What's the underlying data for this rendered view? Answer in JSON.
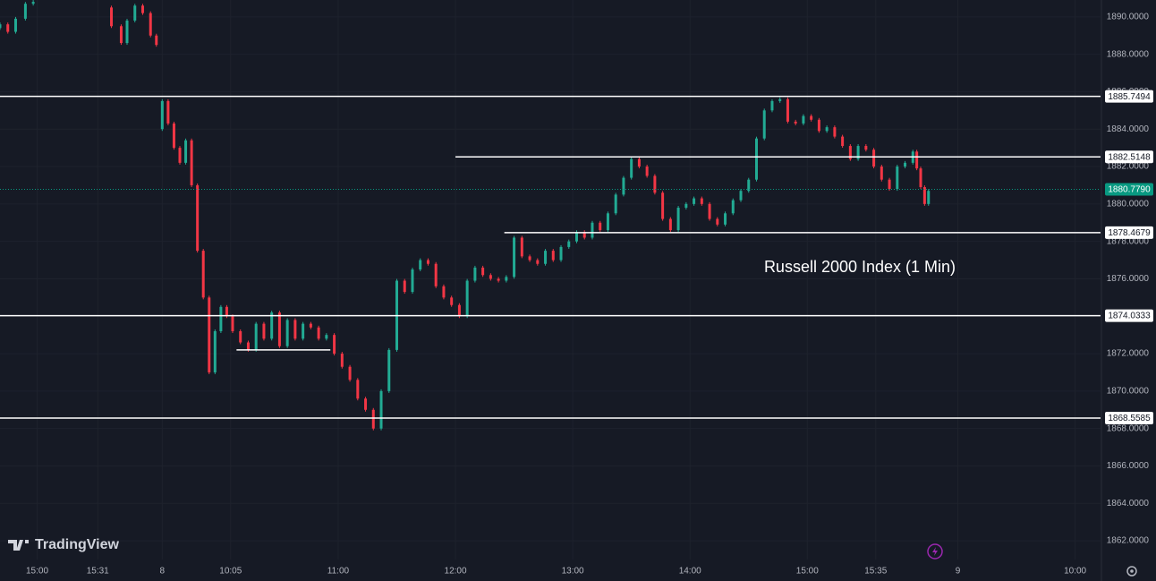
{
  "chart_data": {
    "type": "candlestick",
    "annotation": "Russell 2000 Index (1 Min)",
    "brand": "TradingView",
    "up_color": "#22ab94",
    "down_color": "#f23645",
    "xlim": [
      -83,
      480
    ],
    "ylim": [
      1861.0,
      1890.9
    ],
    "xticks": [
      {
        "value": -64,
        "label": "15:00"
      },
      {
        "value": -33,
        "label": "15:31"
      },
      {
        "value": 0,
        "label": "8"
      },
      {
        "value": 35,
        "label": "10:05"
      },
      {
        "value": 90,
        "label": "11:00"
      },
      {
        "value": 150,
        "label": "12:00"
      },
      {
        "value": 210,
        "label": "13:00"
      },
      {
        "value": 270,
        "label": "14:00"
      },
      {
        "value": 330,
        "label": "15:00"
      },
      {
        "value": 365,
        "label": "15:35"
      },
      {
        "value": 407,
        "label": "9"
      },
      {
        "value": 467,
        "label": "10:00"
      }
    ],
    "yticks": [
      {
        "value": 1862,
        "label": "1862.0000"
      },
      {
        "value": 1864,
        "label": "1864.0000"
      },
      {
        "value": 1866,
        "label": "1866.0000"
      },
      {
        "value": 1868,
        "label": "1868.0000"
      },
      {
        "value": 1870,
        "label": "1870.0000"
      },
      {
        "value": 1872,
        "label": "1872.0000"
      },
      {
        "value": 1874,
        "label": "1874.0000"
      },
      {
        "value": 1876,
        "label": "1876.0000"
      },
      {
        "value": 1878,
        "label": "1878.0000"
      },
      {
        "value": 1880,
        "label": "1880.0000"
      },
      {
        "value": 1882,
        "label": "1882.0000"
      },
      {
        "value": 1884,
        "label": "1884.0000"
      },
      {
        "value": 1886,
        "label": "1886.0000"
      },
      {
        "value": 1888,
        "label": "1888.0000"
      },
      {
        "value": 1890,
        "label": "1890.0000"
      }
    ],
    "levels": [
      {
        "price": 1885.7494,
        "from": -83
      },
      {
        "price": 1882.5148,
        "from": 150
      },
      {
        "price": 1878.4679,
        "from": 175
      },
      {
        "price": 1874.0333,
        "from": -83
      },
      {
        "price": 1868.5585,
        "from": -83
      }
    ],
    "minor_level": {
      "price": 1872.2,
      "from": 38,
      "to": 86
    },
    "last_price": {
      "value": 1880.779,
      "label": "1880.7790",
      "color": "#089981"
    },
    "candles": [
      {
        "x": -83,
        "open": 1889.4,
        "close": 1889.6
      },
      {
        "x": -79,
        "open": 1889.6,
        "close": 1889.2
      },
      {
        "x": -75,
        "open": 1889.2,
        "close": 1889.9
      },
      {
        "x": -70,
        "open": 1889.9,
        "close": 1890.7
      },
      {
        "x": -66,
        "open": 1890.7,
        "close": 1890.8
      },
      {
        "x": -26,
        "open": 1890.5,
        "close": 1889.5
      },
      {
        "x": -21,
        "open": 1889.5,
        "close": 1888.6
      },
      {
        "x": -18,
        "open": 1888.6,
        "close": 1889.8
      },
      {
        "x": -14,
        "open": 1889.8,
        "close": 1890.6
      },
      {
        "x": -10,
        "open": 1890.6,
        "close": 1890.2
      },
      {
        "x": -6,
        "open": 1890.2,
        "close": 1889.0
      },
      {
        "x": -3,
        "open": 1889.0,
        "close": 1888.5
      },
      {
        "x": 0,
        "open": 1884.0,
        "close": 1885.5
      },
      {
        "x": 3,
        "open": 1885.5,
        "close": 1884.3
      },
      {
        "x": 6,
        "open": 1884.3,
        "close": 1883.0
      },
      {
        "x": 9,
        "open": 1883.0,
        "close": 1882.2
      },
      {
        "x": 12,
        "open": 1882.2,
        "close": 1883.4
      },
      {
        "x": 15,
        "open": 1883.4,
        "close": 1881.0
      },
      {
        "x": 18,
        "open": 1881.0,
        "close": 1877.5
      },
      {
        "x": 21,
        "open": 1877.5,
        "close": 1875.0
      },
      {
        "x": 24,
        "open": 1875.0,
        "close": 1871.0
      },
      {
        "x": 27,
        "open": 1871.0,
        "close": 1873.2
      },
      {
        "x": 30,
        "open": 1873.2,
        "close": 1874.5
      },
      {
        "x": 33,
        "open": 1874.5,
        "close": 1874.0
      },
      {
        "x": 36,
        "open": 1874.0,
        "close": 1873.2
      },
      {
        "x": 40,
        "open": 1873.2,
        "close": 1872.6
      },
      {
        "x": 44,
        "open": 1872.6,
        "close": 1872.2
      },
      {
        "x": 48,
        "open": 1872.2,
        "close": 1873.6
      },
      {
        "x": 52,
        "open": 1873.6,
        "close": 1872.8
      },
      {
        "x": 56,
        "open": 1872.8,
        "close": 1874.2
      },
      {
        "x": 60,
        "open": 1874.2,
        "close": 1872.4
      },
      {
        "x": 64,
        "open": 1872.4,
        "close": 1873.8
      },
      {
        "x": 68,
        "open": 1873.8,
        "close": 1872.8
      },
      {
        "x": 72,
        "open": 1872.8,
        "close": 1873.6
      },
      {
        "x": 76,
        "open": 1873.6,
        "close": 1873.4
      },
      {
        "x": 80,
        "open": 1873.4,
        "close": 1872.8
      },
      {
        "x": 84,
        "open": 1872.8,
        "close": 1873.0
      },
      {
        "x": 88,
        "open": 1873.0,
        "close": 1872.0
      },
      {
        "x": 92,
        "open": 1872.0,
        "close": 1871.3
      },
      {
        "x": 96,
        "open": 1871.3,
        "close": 1870.6
      },
      {
        "x": 100,
        "open": 1870.6,
        "close": 1869.6
      },
      {
        "x": 104,
        "open": 1869.6,
        "close": 1869.0
      },
      {
        "x": 108,
        "open": 1869.0,
        "close": 1868.0
      },
      {
        "x": 112,
        "open": 1868.0,
        "close": 1870.0
      },
      {
        "x": 116,
        "open": 1870.0,
        "close": 1872.2
      },
      {
        "x": 120,
        "open": 1872.2,
        "close": 1875.9
      },
      {
        "x": 124,
        "open": 1875.9,
        "close": 1875.3
      },
      {
        "x": 128,
        "open": 1875.3,
        "close": 1876.5
      },
      {
        "x": 132,
        "open": 1876.5,
        "close": 1877.0
      },
      {
        "x": 136,
        "open": 1877.0,
        "close": 1876.8
      },
      {
        "x": 140,
        "open": 1876.8,
        "close": 1875.6
      },
      {
        "x": 144,
        "open": 1875.6,
        "close": 1875.0
      },
      {
        "x": 148,
        "open": 1875.0,
        "close": 1874.6
      },
      {
        "x": 152,
        "open": 1874.6,
        "close": 1874.0
      },
      {
        "x": 156,
        "open": 1874.0,
        "close": 1875.9
      },
      {
        "x": 160,
        "open": 1875.9,
        "close": 1876.6
      },
      {
        "x": 164,
        "open": 1876.6,
        "close": 1876.2
      },
      {
        "x": 168,
        "open": 1876.2,
        "close": 1876.0
      },
      {
        "x": 172,
        "open": 1876.0,
        "close": 1875.9
      },
      {
        "x": 176,
        "open": 1875.9,
        "close": 1876.1
      },
      {
        "x": 180,
        "open": 1876.1,
        "close": 1878.2
      },
      {
        "x": 184,
        "open": 1878.2,
        "close": 1877.2
      },
      {
        "x": 188,
        "open": 1877.2,
        "close": 1877.0
      },
      {
        "x": 192,
        "open": 1877.0,
        "close": 1876.8
      },
      {
        "x": 196,
        "open": 1876.8,
        "close": 1877.5
      },
      {
        "x": 200,
        "open": 1877.5,
        "close": 1877.0
      },
      {
        "x": 204,
        "open": 1877.0,
        "close": 1877.7
      },
      {
        "x": 208,
        "open": 1877.7,
        "close": 1878.0
      },
      {
        "x": 212,
        "open": 1878.0,
        "close": 1878.5
      },
      {
        "x": 216,
        "open": 1878.5,
        "close": 1878.2
      },
      {
        "x": 220,
        "open": 1878.2,
        "close": 1879.0
      },
      {
        "x": 224,
        "open": 1879.0,
        "close": 1878.6
      },
      {
        "x": 228,
        "open": 1878.6,
        "close": 1879.5
      },
      {
        "x": 232,
        "open": 1879.5,
        "close": 1880.5
      },
      {
        "x": 236,
        "open": 1880.5,
        "close": 1881.4
      },
      {
        "x": 240,
        "open": 1881.4,
        "close": 1882.4
      },
      {
        "x": 244,
        "open": 1882.4,
        "close": 1882.0
      },
      {
        "x": 248,
        "open": 1882.0,
        "close": 1881.5
      },
      {
        "x": 252,
        "open": 1881.5,
        "close": 1880.6
      },
      {
        "x": 256,
        "open": 1880.6,
        "close": 1879.2
      },
      {
        "x": 260,
        "open": 1879.2,
        "close": 1878.6
      },
      {
        "x": 264,
        "open": 1878.6,
        "close": 1879.8
      },
      {
        "x": 268,
        "open": 1879.8,
        "close": 1880.0
      },
      {
        "x": 272,
        "open": 1880.0,
        "close": 1880.3
      },
      {
        "x": 276,
        "open": 1880.3,
        "close": 1880.0
      },
      {
        "x": 280,
        "open": 1880.0,
        "close": 1879.2
      },
      {
        "x": 284,
        "open": 1879.2,
        "close": 1878.9
      },
      {
        "x": 288,
        "open": 1878.9,
        "close": 1879.5
      },
      {
        "x": 292,
        "open": 1879.5,
        "close": 1880.2
      },
      {
        "x": 296,
        "open": 1880.2,
        "close": 1880.7
      },
      {
        "x": 300,
        "open": 1880.7,
        "close": 1881.3
      },
      {
        "x": 304,
        "open": 1881.3,
        "close": 1883.5
      },
      {
        "x": 308,
        "open": 1883.5,
        "close": 1885.0
      },
      {
        "x": 312,
        "open": 1885.0,
        "close": 1885.5
      },
      {
        "x": 316,
        "open": 1885.5,
        "close": 1885.6
      },
      {
        "x": 320,
        "open": 1885.6,
        "close": 1884.4
      },
      {
        "x": 324,
        "open": 1884.4,
        "close": 1884.3
      },
      {
        "x": 328,
        "open": 1884.3,
        "close": 1884.7
      },
      {
        "x": 332,
        "open": 1884.7,
        "close": 1884.5
      },
      {
        "x": 336,
        "open": 1884.5,
        "close": 1883.9
      },
      {
        "x": 340,
        "open": 1883.9,
        "close": 1884.1
      },
      {
        "x": 344,
        "open": 1884.1,
        "close": 1883.6
      },
      {
        "x": 348,
        "open": 1883.6,
        "close": 1883.1
      },
      {
        "x": 352,
        "open": 1883.1,
        "close": 1882.4
      },
      {
        "x": 356,
        "open": 1882.4,
        "close": 1883.1
      },
      {
        "x": 360,
        "open": 1883.1,
        "close": 1882.9
      },
      {
        "x": 364,
        "open": 1882.9,
        "close": 1882.0
      },
      {
        "x": 368,
        "open": 1882.0,
        "close": 1881.3
      },
      {
        "x": 372,
        "open": 1881.3,
        "close": 1880.8
      },
      {
        "x": 376,
        "open": 1880.8,
        "close": 1882.0
      },
      {
        "x": 380,
        "open": 1882.0,
        "close": 1882.2
      },
      {
        "x": 384,
        "open": 1882.2,
        "close": 1882.8
      },
      {
        "x": 386,
        "open": 1882.8,
        "close": 1881.9
      },
      {
        "x": 388,
        "open": 1881.9,
        "close": 1880.9
      },
      {
        "x": 390,
        "open": 1880.9,
        "close": 1880.0
      },
      {
        "x": 392,
        "open": 1880.0,
        "close": 1880.7
      }
    ]
  }
}
